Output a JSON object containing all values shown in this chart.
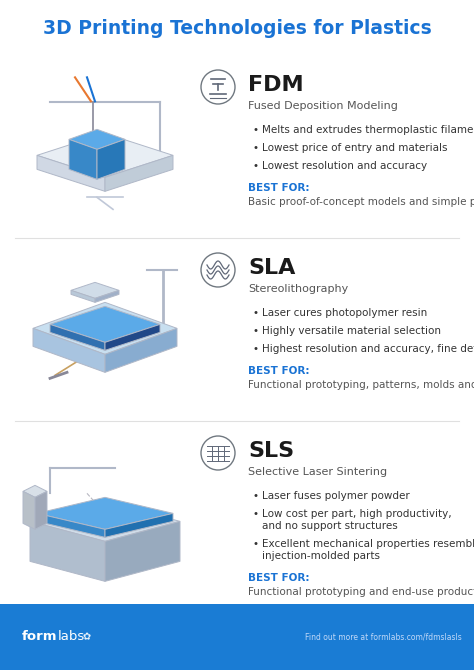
{
  "title": "3D Printing Technologies for Plastics",
  "title_color": "#1a73d4",
  "bg_color": "#ffffff",
  "footer_bg": "#1a7cd4",
  "divider_color": "#e0e0e0",
  "sections": [
    {
      "acronym": "FDM",
      "full_name": "Fused Deposition Modeling",
      "bullets": [
        "Melts and extrudes thermoplastic filament",
        "Lowest price of entry and materials",
        "Lowest resolution and accuracy"
      ],
      "best_for_label": "BEST FOR:",
      "best_for_text": "Basic proof-of-concept models and simple prototyping",
      "icon_type": "fdm"
    },
    {
      "acronym": "SLA",
      "full_name": "Stereolithography",
      "bullets": [
        "Laser cures photopolymer resin",
        "Highly versatile material selection",
        "Highest resolution and accuracy, fine details"
      ],
      "best_for_label": "BEST FOR:",
      "best_for_text": "Functional prototyping, patterns, molds and tooling",
      "icon_type": "sla"
    },
    {
      "acronym": "SLS",
      "full_name": "Selective Laser Sintering",
      "bullets": [
        "Laser fuses polymer powder",
        "Low cost per part, high productivity,\nand no support structures",
        "Excellent mechanical properties resembling\ninjection-molded parts"
      ],
      "best_for_label": "BEST FOR:",
      "best_for_text": "Functional prototyping and end-use production",
      "icon_type": "sls"
    }
  ],
  "acronym_color": "#1a1a1a",
  "fullname_color": "#555555",
  "bullet_color": "#333333",
  "best_for_color": "#1a73d4",
  "best_for_text_color": "#555555"
}
